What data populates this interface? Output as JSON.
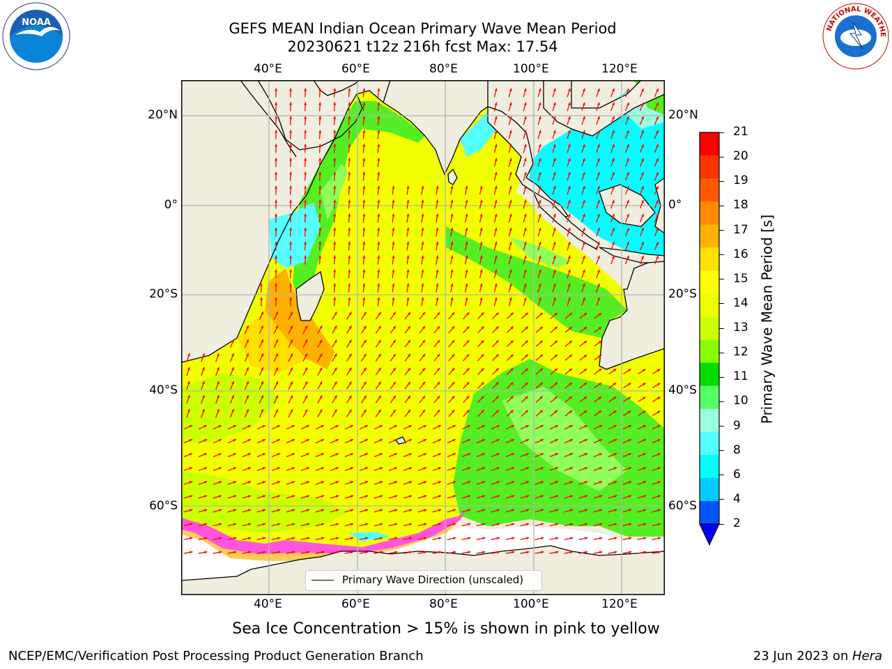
{
  "title": {
    "line1": "GEFS MEAN Indian Ocean Primary Wave Mean Period",
    "line2": "20230621 t12z 216h fcst   Max: 17.54"
  },
  "map": {
    "top_lon_labels": [
      "40°E",
      "60°E",
      "80°E",
      "100°E",
      "120°E"
    ],
    "bottom_lon_labels": [
      "40°E",
      "60°E",
      "80°E",
      "100°E",
      "120°E"
    ],
    "left_lat_labels": [
      "20°N",
      "0°",
      "20°S",
      "40°S",
      "60°S"
    ],
    "right_lat_labels": [
      "20°N",
      "0°",
      "20°S",
      "40°S",
      "60°S"
    ],
    "land_color": "#efeedf",
    "arrow_color": "#ff0000"
  },
  "legend": {
    "label": "Primary Wave Direction (unscaled)"
  },
  "colorbar": {
    "label": "Primary Wave Mean Period [s]",
    "ticks": [
      "21",
      "20",
      "19",
      "18",
      "17",
      "16",
      "15",
      "14",
      "13",
      "12",
      "11",
      "10",
      "9",
      "8",
      "6",
      "4",
      "2"
    ],
    "colors": [
      "#ff0000",
      "#ff3300",
      "#ff5a00",
      "#ff8a00",
      "#ffb100",
      "#ffe000",
      "#ffff00",
      "#eeff00",
      "#ccff00",
      "#88ff00",
      "#00dd00",
      "#55ff66",
      "#99ffdd",
      "#55ffff",
      "#00ffff",
      "#00ccff",
      "#0055ff"
    ],
    "extend_color": "#0000ff"
  },
  "bottom_note": "Sea Ice Concentration > 15% is shown in pink to yellow",
  "footer": {
    "left": "NCEP/EMC/Verification Post Processing Product Generation Branch",
    "right_date": "23 Jun 2023 on ",
    "right_machine": "Hera"
  },
  "logos": {
    "left": "NOAA",
    "right": "NATIONAL WEATHER SERVICE"
  }
}
